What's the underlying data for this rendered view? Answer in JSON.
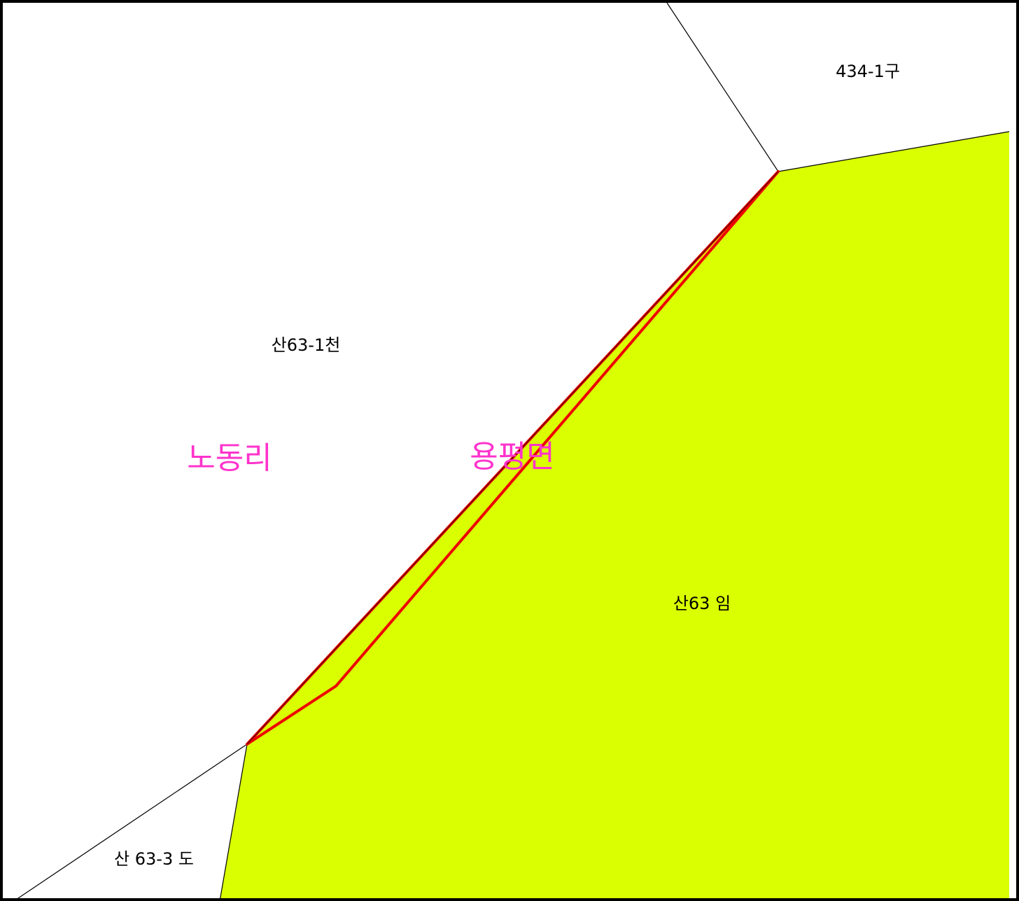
{
  "parcels": [
    {
      "label": "434-1구"
    },
    {
      "label": "산63-1천"
    },
    {
      "label": "산63 임"
    },
    {
      "label": "산 63-3 도"
    }
  ],
  "districts": [
    {
      "label": "노동리"
    },
    {
      "label": "용평면"
    }
  ]
}
